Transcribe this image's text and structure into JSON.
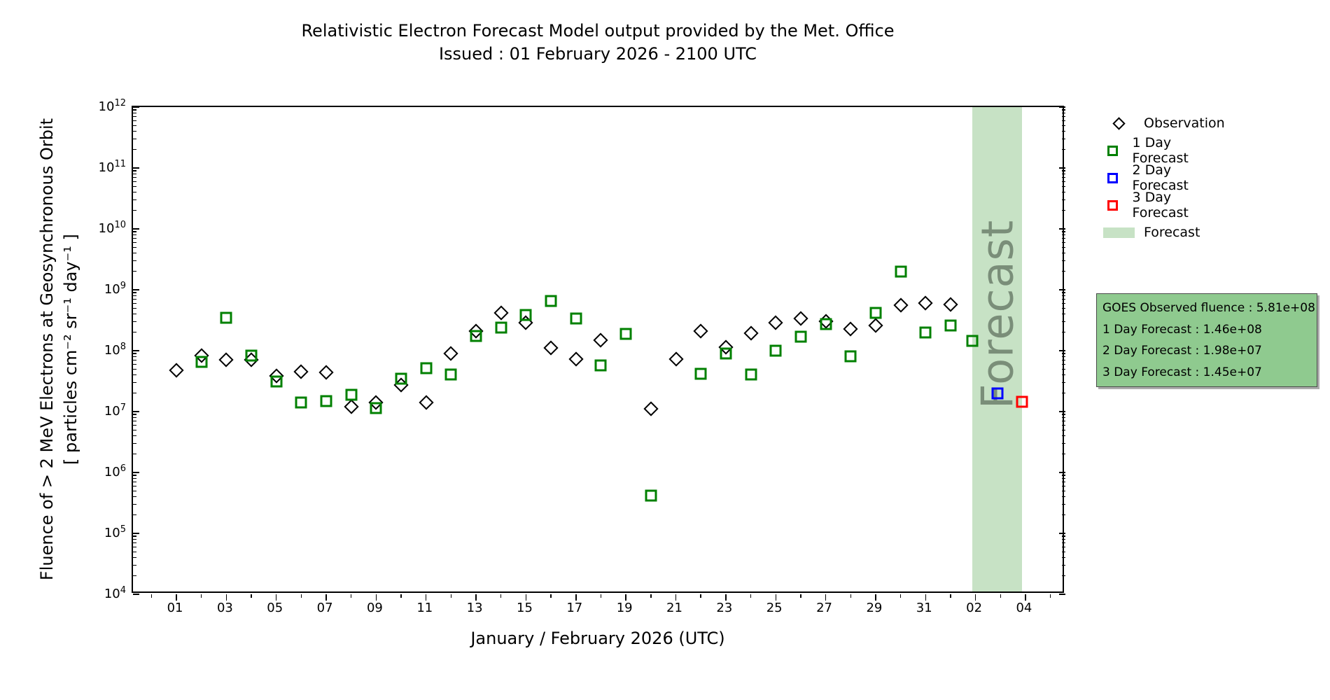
{
  "chart_data": {
    "type": "scatter",
    "title": "Relativistic Electron Forecast Model output provided by the Met. Office",
    "subtitle": "Issued : 01 February 2026 - 2100 UTC",
    "xlabel": "January / February 2026 (UTC)",
    "ylabel_line1": "Fluence of > 2 MeV Electrons at Geosynchronous Orbit",
    "ylabel_line2": "[ particles cm⁻² sr⁻¹ day⁻¹ ]",
    "x_axis_note": "day 1 = 01 January 2026, day 33 = 02 February 2026",
    "xlim_days": [
      -0.74,
      36.6
    ],
    "ylim_log10": [
      4,
      12
    ],
    "grid": false,
    "x_minor_day_range": [
      0,
      36
    ],
    "x_ticks": [
      [
        1,
        "01"
      ],
      [
        3,
        "03"
      ],
      [
        5,
        "05"
      ],
      [
        7,
        "07"
      ],
      [
        9,
        "09"
      ],
      [
        11,
        "11"
      ],
      [
        13,
        "13"
      ],
      [
        15,
        "15"
      ],
      [
        17,
        "17"
      ],
      [
        19,
        "19"
      ],
      [
        21,
        "21"
      ],
      [
        23,
        "23"
      ],
      [
        25,
        "25"
      ],
      [
        27,
        "27"
      ],
      [
        29,
        "29"
      ],
      [
        31,
        "31"
      ],
      [
        33,
        "02"
      ],
      [
        35,
        "04"
      ]
    ],
    "y_tick_exponents": [
      4,
      5,
      6,
      7,
      8,
      9,
      10,
      11,
      12
    ],
    "forecast_band": {
      "start_day": 32.875,
      "end_day": 34.875,
      "label": "Forecast",
      "color": "#c7e2c5"
    },
    "series": [
      {
        "name": "Observation",
        "marker": "diamond",
        "color": "#000000",
        "points": [
          [
            1,
            48000000.0
          ],
          [
            2,
            83000000.0
          ],
          [
            3,
            70000000.0
          ],
          [
            4,
            70000000.0
          ],
          [
            5,
            39000000.0
          ],
          [
            6,
            45000000.0
          ],
          [
            7,
            44000000.0
          ],
          [
            8,
            12000000.0
          ],
          [
            9,
            14000000.0
          ],
          [
            10,
            27000000.0
          ],
          [
            11,
            14000000.0
          ],
          [
            12,
            91000000.0
          ],
          [
            13,
            210000000.0
          ],
          [
            14,
            420000000.0
          ],
          [
            15,
            290000000.0
          ],
          [
            16,
            110000000.0
          ],
          [
            17,
            73000000.0
          ],
          [
            18,
            150000000.0
          ],
          [
            20,
            11000000.0
          ],
          [
            21,
            72000000.0
          ],
          [
            22,
            210000000.0
          ],
          [
            23,
            115000000.0
          ],
          [
            24,
            195000000.0
          ],
          [
            25,
            290000000.0
          ],
          [
            26,
            340000000.0
          ],
          [
            27,
            300000000.0
          ],
          [
            28,
            230000000.0
          ],
          [
            29,
            260000000.0
          ],
          [
            30,
            560000000.0
          ],
          [
            31,
            610000000.0
          ],
          [
            32,
            581000000.0
          ]
        ]
      },
      {
        "name": "1 Day Forecast",
        "marker": "square",
        "color": "#008000",
        "points": [
          [
            2,
            66000000.0
          ],
          [
            3,
            350000000.0
          ],
          [
            4,
            84000000.0
          ],
          [
            5,
            31000000.0
          ],
          [
            6,
            14000000.0
          ],
          [
            7,
            15000000.0
          ],
          [
            8,
            19000000.0
          ],
          [
            9,
            11500000.0
          ],
          [
            10,
            35000000.0
          ],
          [
            11,
            52000000.0
          ],
          [
            12,
            41000000.0
          ],
          [
            13,
            176000000.0
          ],
          [
            14,
            240000000.0
          ],
          [
            15,
            390000000.0
          ],
          [
            16,
            650000000.0
          ],
          [
            17,
            340000000.0
          ],
          [
            18,
            58000000.0
          ],
          [
            19,
            190000000.0
          ],
          [
            20,
            420000.0
          ],
          [
            22,
            42000000.0
          ],
          [
            23,
            89000000.0
          ],
          [
            24,
            41000000.0
          ],
          [
            25,
            100000000.0
          ],
          [
            26,
            170000000.0
          ],
          [
            27,
            270000000.0
          ],
          [
            28,
            80000000.0
          ],
          [
            29,
            420000000.0
          ],
          [
            30,
            2000000000.0
          ],
          [
            31,
            200000000.0
          ],
          [
            32,
            260000000.0
          ],
          [
            32.875,
            146000000.0
          ]
        ]
      },
      {
        "name": "2 Day Forecast",
        "marker": "square",
        "color": "#0000ff",
        "points": [
          [
            33.875,
            19800000.0
          ]
        ]
      },
      {
        "name": "3 Day Forecast",
        "marker": "square",
        "color": "#ff0000",
        "points": [
          [
            34.875,
            14500000.0
          ]
        ]
      }
    ]
  },
  "legend": {
    "items": [
      {
        "label": "Observation"
      },
      {
        "label": "1 Day Forecast"
      },
      {
        "label": "2 Day Forecast"
      },
      {
        "label": "3 Day Forecast"
      },
      {
        "label": "Forecast"
      }
    ]
  },
  "info_box": {
    "background": "#8fca8f",
    "lines": [
      "GOES Observed fluence : 5.81e+08",
      "1 Day Forecast : 1.46e+08",
      "2 Day Forecast : 1.98e+07",
      "3 Day Forecast : 1.45e+07"
    ]
  }
}
